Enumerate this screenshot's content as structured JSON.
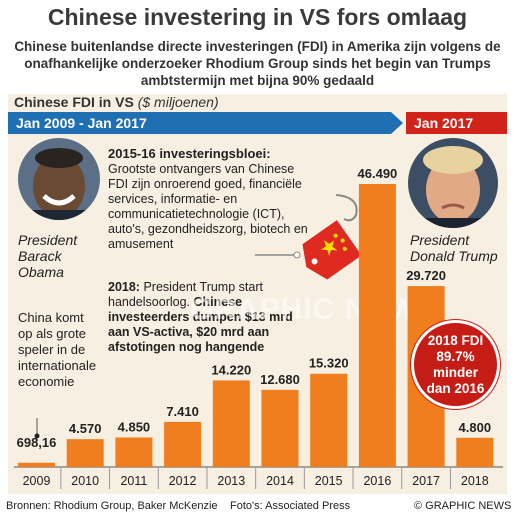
{
  "header": {
    "title": "Chinese investering in VS fors omlaag",
    "subtitle": "Chinese buitenlandse directe investeringen (FDI) in Amerika zijn volgens de onafhankelijke onderzoeker Rhodium Group sinds het begin van Trumps ambtstermijn met bijna 90% gedaald"
  },
  "panel": {
    "title": "Chinese FDI in VS",
    "unit": "($ miljoenen)",
    "band_obama": "Jan 2009 - Jan 2017",
    "band_trump": "Jan 2017"
  },
  "people": {
    "obama_caption": [
      "President",
      "Barack",
      "Obama"
    ],
    "trump_caption": [
      "President",
      "Donald Trump"
    ]
  },
  "notes": {
    "boom_title": "2015-16 investeringsbloei:",
    "boom_text": "Grootste ontvangers van Chinese FDI zijn onroerend goed, financiële services, informatie- en communicatietechnologie (ICT), auto's, gezondheidszorg, biotech en amusement",
    "y2018_title": "2018:",
    "y2018_text": "President Trump start handelsoorlog.",
    "y2018_bold": "Chinese investeerders dumpen $13 mrd aan VS-activa, $20 mrd aan afstotingen nog hangende",
    "china_text": "China komt op als grote speler in de internationale economie",
    "badge": [
      "2018 FDI",
      "89.7%",
      "minder",
      "dan 2016"
    ]
  },
  "footer": {
    "sources": "Bronnen: Rhodium Group, Baker McKenzie",
    "photos": "Foto's: Associated Press",
    "brand": "© GRAPHIC NEWS"
  },
  "watermark": "GRAPHIC NEWS",
  "colors": {
    "bar": "#f07d1e",
    "band_blue": "#1f6fb3",
    "band_red": "#d2231a",
    "panel": "#f7efe2"
  },
  "chart_data": {
    "type": "bar",
    "title": "Chinese FDI in VS",
    "ylabel": "($ miljoenen)",
    "categories": [
      "2009",
      "2010",
      "2011",
      "2012",
      "2013",
      "2014",
      "2015",
      "2016",
      "2017",
      "2018"
    ],
    "values": [
      698.16,
      4570,
      4850,
      7410,
      14220,
      12680,
      15320,
      46490,
      29720,
      4800
    ],
    "value_labels": [
      "698,16",
      "4.570",
      "4.850",
      "7.410",
      "14.220",
      "12.680",
      "15.320",
      "46.490",
      "29.720",
      "4.800"
    ],
    "ylim": [
      0,
      46490
    ],
    "grid": false
  }
}
